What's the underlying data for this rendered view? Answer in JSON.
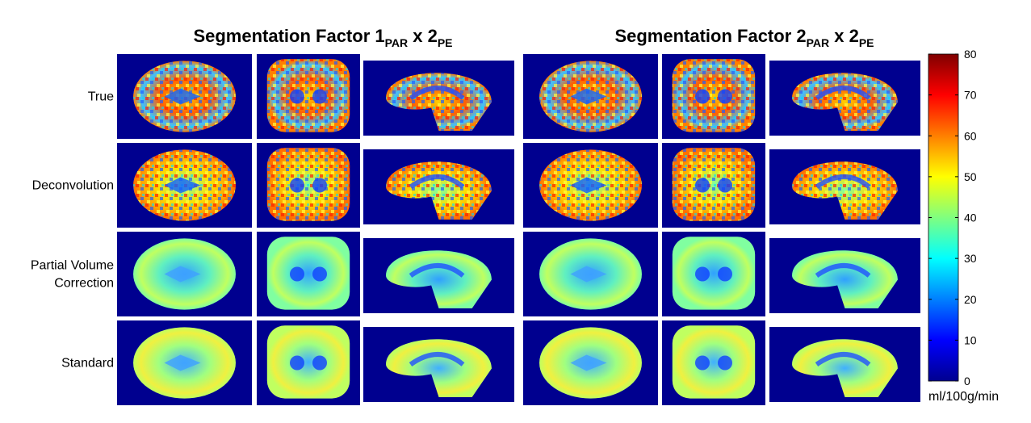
{
  "titles": [
    {
      "main": "Segmentation Factor 1",
      "sub1": "PAR",
      "mid": " x 2",
      "sub2": "PE"
    },
    {
      "main": "Segmentation Factor 2",
      "sub1": "PAR",
      "mid": " x 2",
      "sub2": "PE"
    }
  ],
  "row_labels": [
    [
      "True"
    ],
    [
      "Deconvolution"
    ],
    [
      "Partial Volume",
      "Correction"
    ],
    [
      "Standard"
    ]
  ],
  "colorbar": {
    "range": [
      0,
      80
    ],
    "ticks": [
      0,
      10,
      20,
      30,
      40,
      50,
      60,
      70,
      80
    ],
    "unit_label": "ml/100g/min"
  }
}
